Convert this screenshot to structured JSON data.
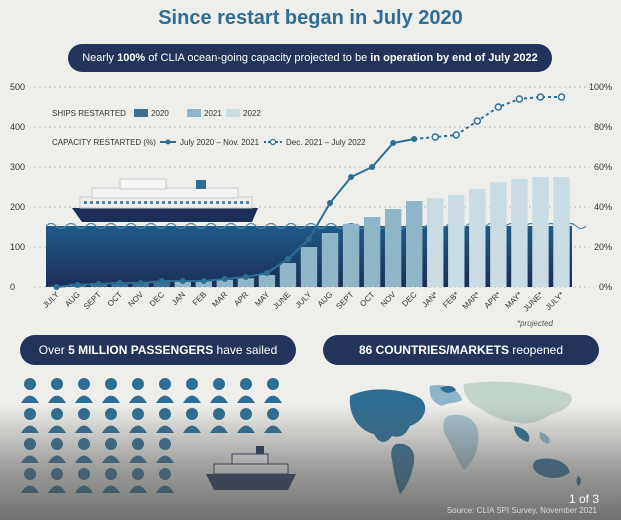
{
  "title": "Since restart began in July 2020",
  "banner": {
    "pre": "Nearly ",
    "pct": "100%",
    "mid": " of CLIA ocean-going capacity projected to be ",
    "bold": "in operation by end of July 2022"
  },
  "passengers": {
    "pre": "Over ",
    "bold": "5 MILLION PASSENGERS",
    "post": " have sailed"
  },
  "countries": {
    "bold": "86 COUNTRIES/MARKETS",
    "post": " reopened"
  },
  "page_indicator": "1 of 3",
  "source": "Source: CLIA SPI Survey, November 2021",
  "colors": {
    "navy": "#23345a",
    "title": "#2e6e93",
    "bar2020": "#3d6e93",
    "bar2021": "#8fb5c8",
    "bar2022": "#c9dce4",
    "line": "#2e6e93"
  },
  "chart_data": {
    "type": "bar",
    "legend_ships": {
      "label": "SHIPS RESTARTED",
      "items": [
        "2020",
        "2021",
        "2022"
      ]
    },
    "legend_capacity": {
      "label": "CAPACITY RESTARTED (%)",
      "items": [
        "July 2020 – Nov. 2021",
        "Dec. 2021 – July 2022"
      ]
    },
    "categories": [
      "JULY",
      "AUG",
      "SEPT",
      "OCT",
      "NOV",
      "DEC",
      "JAN",
      "FEB",
      "MAR",
      "APR",
      "MAY",
      "JUNE",
      "JULY",
      "AUG",
      "SEPT",
      "OCT",
      "NOV",
      "DEC",
      "JAN*",
      "FEB*",
      "MAR*",
      "APR*",
      "MAY*",
      "JUNE*",
      "JULY*"
    ],
    "bar_year": [
      "2020",
      "2020",
      "2020",
      "2020",
      "2020",
      "2020",
      "2021",
      "2021",
      "2021",
      "2021",
      "2021",
      "2021",
      "2021",
      "2021",
      "2021",
      "2021",
      "2021",
      "2021",
      "2022",
      "2022",
      "2022",
      "2022",
      "2022",
      "2022",
      "2022"
    ],
    "ships": [
      2,
      8,
      10,
      12,
      12,
      14,
      14,
      15,
      18,
      22,
      30,
      60,
      100,
      135,
      158,
      175,
      195,
      215,
      222,
      230,
      245,
      262,
      270,
      275,
      275
    ],
    "capacity_pct": [
      0,
      1,
      1.5,
      2,
      2,
      3,
      3,
      3,
      4,
      5,
      7,
      14,
      24,
      42,
      55,
      60,
      72,
      74,
      75,
      76,
      83,
      90,
      94,
      95,
      95
    ],
    "y_left": {
      "min": 0,
      "max": 500,
      "ticks": [
        "0",
        "100",
        "200",
        "300",
        "400",
        "500"
      ]
    },
    "y_right": {
      "min": 0,
      "max": 100,
      "ticks": [
        "0%",
        "20%",
        "40%",
        "60%",
        "80%",
        "100%"
      ]
    },
    "note": "*projected"
  }
}
